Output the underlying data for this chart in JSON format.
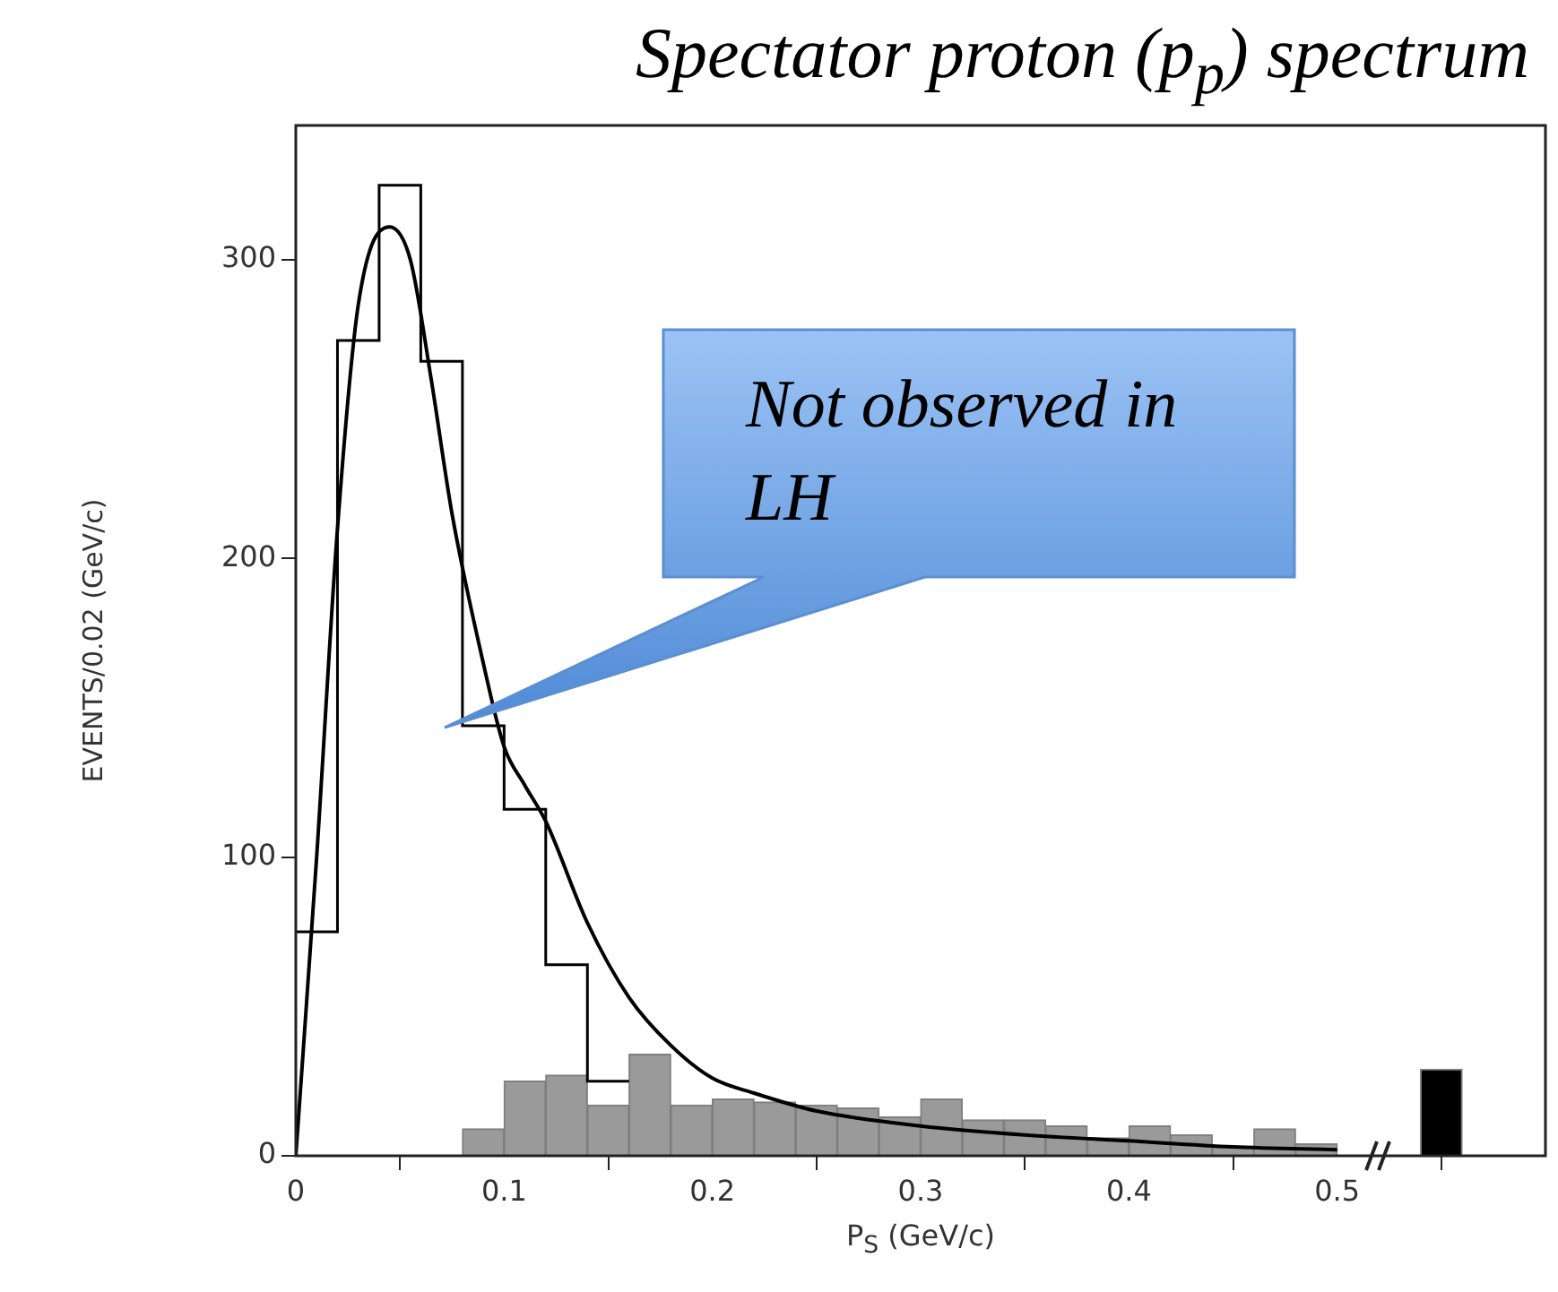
{
  "chart_data": {
    "type": "histogram",
    "title": "Spectator proton (p$_{p}$) spectrum",
    "xlabel": "P$_{S}$ (GeV/c)",
    "ylabel": "EVENTS/0.02 (GeV/c)",
    "annotations": [
      "Not observed in LH"
    ],
    "xlim": [
      0,
      0.6
    ],
    "xticks": [
      0,
      0.1,
      0.2,
      0.3,
      0.4,
      0.5
    ],
    "ylim": [
      0,
      345
    ],
    "yticks": [
      0,
      100,
      200,
      300
    ],
    "series": [
      {
        "color": "#9a9a9a",
        "bins": [
          0.08,
          0.1,
          0.12,
          0.14,
          0.16,
          0.18,
          0.2,
          0.22,
          0.24,
          0.26,
          0.28,
          0.3,
          0.32,
          0.34,
          0.36,
          0.38,
          0.4,
          0.42,
          0.44,
          0.46,
          0.48,
          0.5
        ],
        "values": [
          9,
          25,
          27,
          17,
          34,
          17,
          19,
          18,
          17,
          16,
          13,
          19,
          12,
          12,
          10,
          6,
          10,
          7,
          3,
          9,
          4
        ]
      },
      {
        "color": "#000000",
        "bins": [
          0.54,
          0.56
        ],
        "values": [
          29
        ]
      },
      {
        "type": "step",
        "color": "#000000",
        "x": [
          0,
          0.02,
          0.04,
          0.06,
          0.08,
          0.1,
          0.12,
          0.14,
          0.16
        ],
        "values": [
          75,
          273,
          325,
          266,
          144,
          116,
          64,
          25,
          25
        ]
      },
      {
        "type": "line",
        "color": "#000000",
        "x": [
          0,
          0.01,
          0.02,
          0.03,
          0.045,
          0.055,
          0.065,
          0.075,
          0.09,
          0.1,
          0.11,
          0.12,
          0.14,
          0.16,
          0.18,
          0.2,
          0.22,
          0.25,
          0.3,
          0.35,
          0.4,
          0.45,
          0.5
        ],
        "values": [
          0,
          100,
          210,
          285,
          311,
          300,
          260,
          215,
          165,
          137,
          124,
          112,
          78,
          53,
          37,
          26,
          21,
          15,
          10,
          7,
          5,
          3,
          2
        ]
      }
    ]
  }
}
